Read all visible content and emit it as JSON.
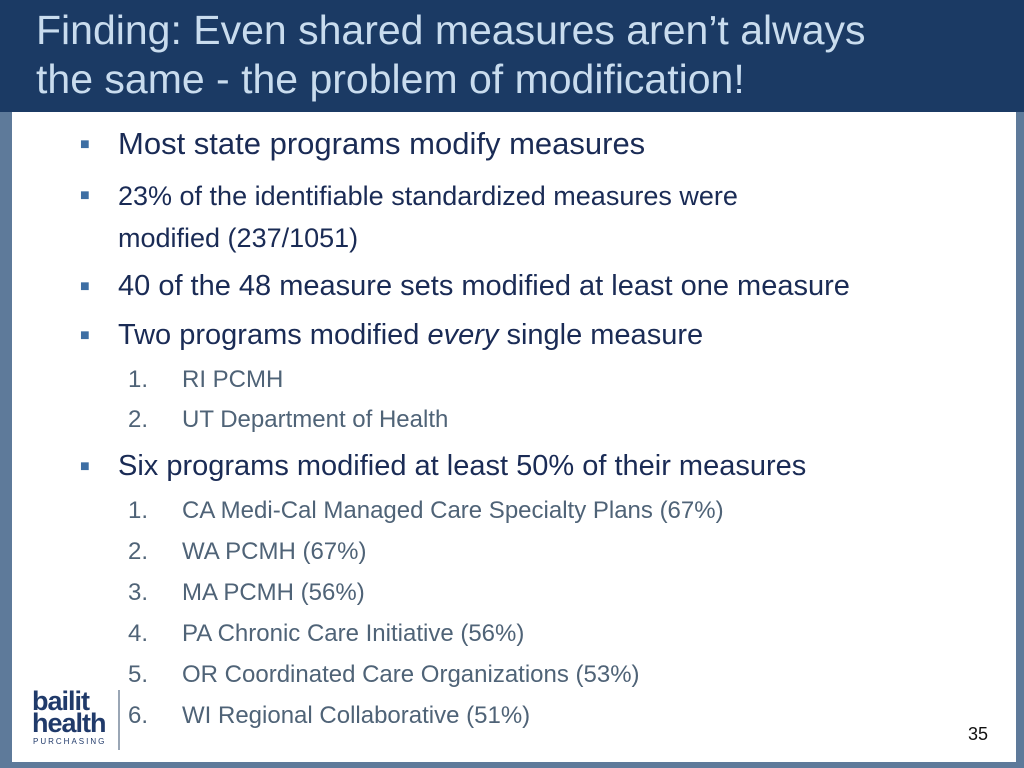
{
  "slide": {
    "title_line1": "Finding: Even shared measures aren’t always",
    "title_line2": "the same - the problem of modification!",
    "bullets": [
      {
        "text": "Most state programs modify measures"
      },
      {
        "text_line1": "23% of the identifiable standardized measures were",
        "text_line2": "modified (237/1051)"
      },
      {
        "text": "40 of the 48 measure sets modified at least one measure"
      },
      {
        "text_pre": "Two programs modified ",
        "text_em": "every",
        "text_post": " single measure",
        "subitems": [
          {
            "num": "1.",
            "text": "RI PCMH"
          },
          {
            "num": "2.",
            "text": "UT Department of Health"
          }
        ]
      },
      {
        "text": "Six programs modified at least 50% of their measures",
        "subitems": [
          {
            "num": "1.",
            "text": "CA Medi-Cal Managed Care Specialty Plans (67%)"
          },
          {
            "num": "2.",
            "text": "WA PCMH (67%)"
          },
          {
            "num": "3.",
            "text": "MA PCMH (56%)"
          },
          {
            "num": "4.",
            "text": "PA Chronic Care Initiative (56%)"
          },
          {
            "num": "5.",
            "text": "OR Coordinated Care Organizations (53%)"
          },
          {
            "num": "6.",
            "text": "WI Regional Collaborative (51%)"
          }
        ]
      }
    ],
    "bullet_glyph": "■",
    "page_number": "35"
  },
  "logo": {
    "line1": "bailit",
    "line2": "health",
    "line3": "PURCHASING"
  },
  "colors": {
    "header_bg": "#1b3a64",
    "title_text": "#c9dcee",
    "frame": "#5e7a9a",
    "bullet_text": "#1a2b55",
    "sub_text": "#4f6377"
  }
}
